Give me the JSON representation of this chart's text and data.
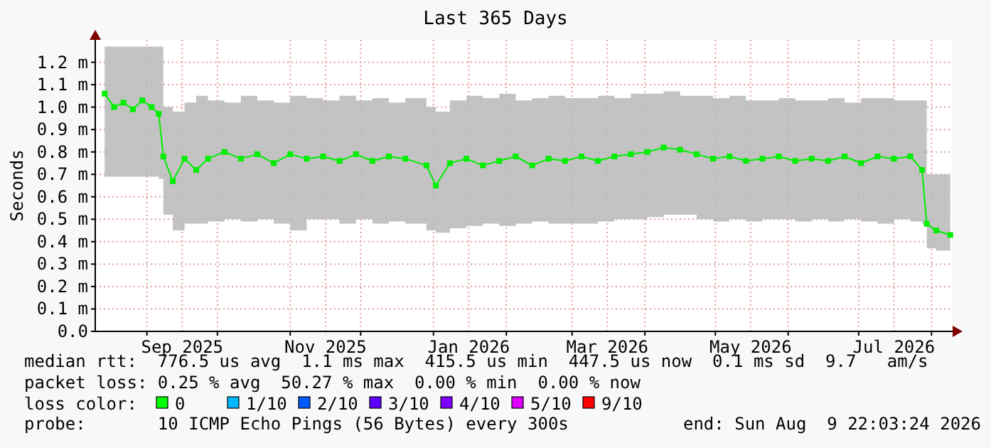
{
  "chart_data": {
    "type": "line",
    "title": "Last 365 Days",
    "ylabel": "Seconds",
    "marker": "square",
    "grid": true,
    "xlim": [
      "2025-08-10",
      "2026-08-10"
    ],
    "xticks": [
      {
        "value": "2025-09-01",
        "label": null
      },
      {
        "value": "2025-09-16",
        "label": "Sep 2025"
      },
      {
        "value": "2025-10-01",
        "label": null
      },
      {
        "value": "2025-11-01",
        "label": null
      },
      {
        "value": "2025-11-16",
        "label": "Nov 2025"
      },
      {
        "value": "2025-12-01",
        "label": null
      },
      {
        "value": "2026-01-01",
        "label": null
      },
      {
        "value": "2026-01-16",
        "label": "Jan 2026"
      },
      {
        "value": "2026-02-01",
        "label": null
      },
      {
        "value": "2026-03-01",
        "label": null
      },
      {
        "value": "2026-03-16",
        "label": "Mar 2026"
      },
      {
        "value": "2026-04-01",
        "label": null
      },
      {
        "value": "2026-05-01",
        "label": null
      },
      {
        "value": "2026-05-16",
        "label": "May 2026"
      },
      {
        "value": "2026-06-01",
        "label": null
      },
      {
        "value": "2026-07-01",
        "label": null
      },
      {
        "value": "2026-07-16",
        "label": "Jul 2026"
      },
      {
        "value": "2026-08-01",
        "label": null
      }
    ],
    "ylim": [
      0,
      1.3
    ],
    "yticks": [
      {
        "value": 0,
        "label": "0.0"
      },
      {
        "value": 0.1,
        "label": "0.1 m"
      },
      {
        "value": 0.2,
        "label": "0.2 m"
      },
      {
        "value": 0.3,
        "label": "0.3 m"
      },
      {
        "value": 0.4,
        "label": "0.4 m"
      },
      {
        "value": 0.5,
        "label": "0.5 m"
      },
      {
        "value": 0.6,
        "label": "0.6 m"
      },
      {
        "value": 0.7,
        "label": "0.7 m"
      },
      {
        "value": 0.8,
        "label": "0.8 m"
      },
      {
        "value": 0.9,
        "label": "0.9 m"
      },
      {
        "value": 1.0,
        "label": "1.0 m"
      },
      {
        "value": 1.1,
        "label": "1.1 m"
      },
      {
        "value": 1.2,
        "label": "1.2 m"
      }
    ],
    "x": [
      "2025-08-14",
      "2025-08-18",
      "2025-08-22",
      "2025-08-26",
      "2025-08-30",
      "2025-09-03",
      "2025-09-06",
      "2025-09-08",
      "2025-09-12",
      "2025-09-17",
      "2025-09-22",
      "2025-09-27",
      "2025-10-04",
      "2025-10-11",
      "2025-10-18",
      "2025-10-25",
      "2025-11-01",
      "2025-11-08",
      "2025-11-15",
      "2025-11-22",
      "2025-11-29",
      "2025-12-06",
      "2025-12-13",
      "2025-12-20",
      "2025-12-29",
      "2026-01-02",
      "2026-01-08",
      "2026-01-15",
      "2026-01-22",
      "2026-01-29",
      "2026-02-05",
      "2026-02-12",
      "2026-02-19",
      "2026-02-26",
      "2026-03-05",
      "2026-03-12",
      "2026-03-19",
      "2026-03-26",
      "2026-04-02",
      "2026-04-09",
      "2026-04-16",
      "2026-04-23",
      "2026-04-30",
      "2026-05-07",
      "2026-05-14",
      "2026-05-21",
      "2026-05-28",
      "2026-06-04",
      "2026-06-11",
      "2026-06-18",
      "2026-06-25",
      "2026-07-02",
      "2026-07-09",
      "2026-07-16",
      "2026-07-23",
      "2026-07-28",
      "2026-07-30",
      "2026-08-03",
      "2026-08-09"
    ],
    "series": [
      {
        "color": "#00ee00",
        "values": [
          1.06,
          1.0,
          1.02,
          0.99,
          1.03,
          1.0,
          0.97,
          0.78,
          0.67,
          0.77,
          0.72,
          0.77,
          0.8,
          0.77,
          0.79,
          0.75,
          0.79,
          0.77,
          0.78,
          0.76,
          0.79,
          0.76,
          0.78,
          0.77,
          0.74,
          0.65,
          0.75,
          0.77,
          0.74,
          0.76,
          0.78,
          0.74,
          0.77,
          0.76,
          0.78,
          0.76,
          0.78,
          0.79,
          0.8,
          0.82,
          0.81,
          0.79,
          0.77,
          0.78,
          0.76,
          0.77,
          0.78,
          0.76,
          0.77,
          0.76,
          0.78,
          0.75,
          0.78,
          0.77,
          0.78,
          0.72,
          0.48,
          0.45,
          0.43
        ],
        "lower": [
          0.69,
          0.69,
          0.69,
          0.69,
          0.69,
          0.69,
          0.68,
          0.52,
          0.45,
          0.48,
          0.48,
          0.49,
          0.5,
          0.49,
          0.5,
          0.48,
          0.45,
          0.5,
          0.5,
          0.48,
          0.5,
          0.48,
          0.49,
          0.48,
          0.45,
          0.44,
          0.46,
          0.47,
          0.48,
          0.47,
          0.48,
          0.49,
          0.48,
          0.48,
          0.48,
          0.49,
          0.5,
          0.5,
          0.51,
          0.52,
          0.52,
          0.5,
          0.49,
          0.5,
          0.49,
          0.5,
          0.5,
          0.49,
          0.5,
          0.49,
          0.5,
          0.49,
          0.48,
          0.5,
          0.49,
          0.48,
          0.37,
          0.36,
          0.35
        ],
        "upper": [
          1.27,
          1.27,
          1.27,
          1.27,
          1.27,
          1.27,
          1.27,
          1.0,
          0.98,
          1.02,
          1.05,
          1.03,
          1.02,
          1.05,
          1.03,
          1.02,
          1.05,
          1.04,
          1.03,
          1.05,
          1.03,
          1.04,
          1.02,
          1.04,
          1.0,
          0.98,
          1.03,
          1.05,
          1.04,
          1.06,
          1.03,
          1.04,
          1.05,
          1.04,
          1.04,
          1.05,
          1.04,
          1.06,
          1.06,
          1.07,
          1.05,
          1.05,
          1.04,
          1.05,
          1.03,
          1.03,
          1.04,
          1.03,
          1.03,
          1.04,
          1.02,
          1.04,
          1.04,
          1.03,
          1.03,
          1.03,
          0.7,
          0.7,
          0.7
        ]
      }
    ],
    "annotations": [
      "median rtt:  776.5 us avg  1.1 ms max  415.5 us min  447.5 us now  0.1 ms sd  9.7   am/s",
      "packet loss: 0.25 % avg  50.27 % max  0.00 % min  0.00 % now",
      "loss color:",
      "0",
      "1/10",
      "2/10",
      "3/10",
      "4/10",
      "5/10",
      "9/10",
      "probe:       10 ICMP Echo Pings (56 Bytes) every 300s",
      "end: Sun Aug  9 22:03:24 2026"
    ]
  }
}
